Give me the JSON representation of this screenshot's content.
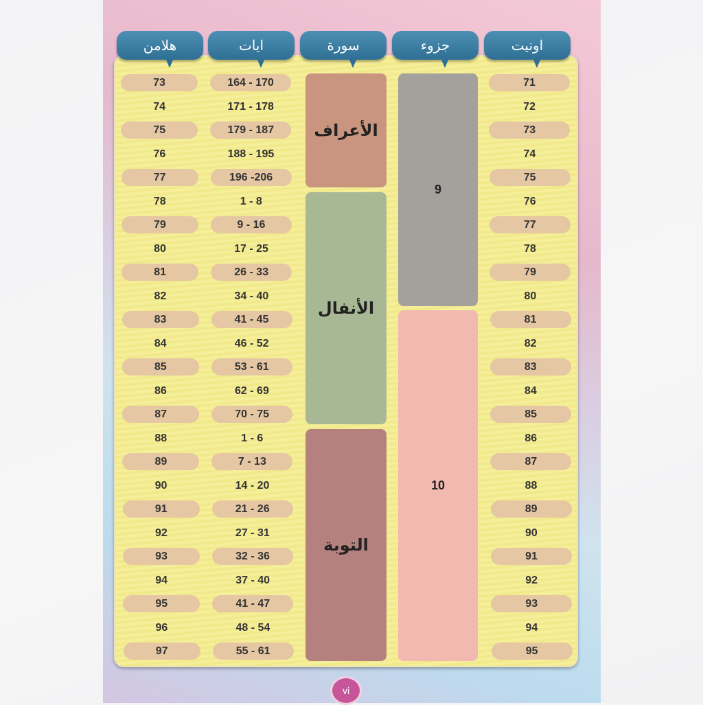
{
  "headers": {
    "page": "هلامن",
    "ayat": "ايات",
    "surah": "سورة",
    "juz": "جزوء",
    "unit": "اونيت"
  },
  "rows": [
    {
      "unit": "71",
      "ayat": "164 - 170",
      "page": "73"
    },
    {
      "unit": "72",
      "ayat": "171 - 178",
      "page": "74"
    },
    {
      "unit": "73",
      "ayat": "179 - 187",
      "page": "75"
    },
    {
      "unit": "74",
      "ayat": "188 - 195",
      "page": "76"
    },
    {
      "unit": "75",
      "ayat": "196 -206",
      "page": "77"
    },
    {
      "unit": "76",
      "ayat": "1 - 8",
      "page": "78"
    },
    {
      "unit": "77",
      "ayat": "9 - 16",
      "page": "79"
    },
    {
      "unit": "78",
      "ayat": "17 - 25",
      "page": "80"
    },
    {
      "unit": "79",
      "ayat": "26 - 33",
      "page": "81"
    },
    {
      "unit": "80",
      "ayat": "34 - 40",
      "page": "82"
    },
    {
      "unit": "81",
      "ayat": "41 - 45",
      "page": "83"
    },
    {
      "unit": "82",
      "ayat": "46 - 52",
      "page": "84"
    },
    {
      "unit": "83",
      "ayat": "53 - 61",
      "page": "85"
    },
    {
      "unit": "84",
      "ayat": "62 - 69",
      "page": "86"
    },
    {
      "unit": "85",
      "ayat": "70 - 75",
      "page": "87"
    },
    {
      "unit": "86",
      "ayat": "1 - 6",
      "page": "88"
    },
    {
      "unit": "87",
      "ayat": "7 - 13",
      "page": "89"
    },
    {
      "unit": "88",
      "ayat": "14 - 20",
      "page": "90"
    },
    {
      "unit": "89",
      "ayat": "21 - 26",
      "page": "91"
    },
    {
      "unit": "90",
      "ayat": "27 - 31",
      "page": "92"
    },
    {
      "unit": "91",
      "ayat": "32 - 36",
      "page": "93"
    },
    {
      "unit": "92",
      "ayat": "37 - 40",
      "page": "94"
    },
    {
      "unit": "93",
      "ayat": "41 - 47",
      "page": "95"
    },
    {
      "unit": "94",
      "ayat": "48 - 54",
      "page": "96"
    },
    {
      "unit": "95",
      "ayat": "55 - 61",
      "page": "97"
    }
  ],
  "surahs": [
    {
      "name": "الأعراف",
      "from": 0,
      "to": 4,
      "color": "#c9957f"
    },
    {
      "name": "الأنفال",
      "from": 5,
      "to": 14,
      "color": "#a9b894"
    },
    {
      "name": "التوبة",
      "from": 15,
      "to": 24,
      "color": "#b5817e"
    }
  ],
  "juz": [
    {
      "name": "9",
      "from": 0,
      "to": 9,
      "color": "#a4a19c"
    },
    {
      "name": "10",
      "from": 10,
      "to": 24,
      "color": "#f1b9b0"
    }
  ],
  "page_number": "vi"
}
